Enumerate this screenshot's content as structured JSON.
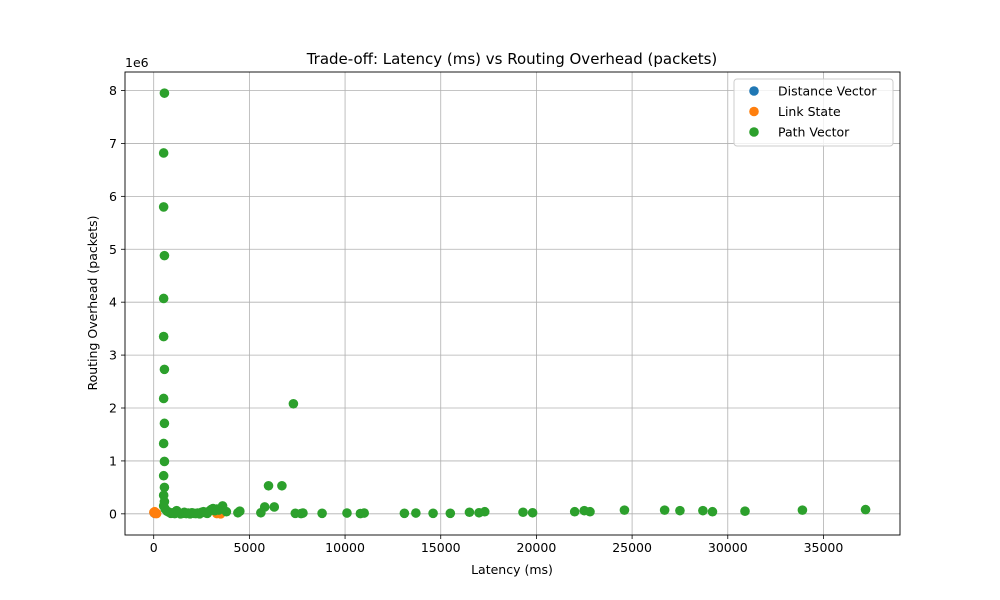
{
  "chart_data": {
    "type": "scatter",
    "title": "Trade-off: Latency (ms) vs Routing Overhead (packets)",
    "xlabel": "Latency (ms)",
    "ylabel": "Routing Overhead (packets)",
    "y_scale_label": "1e6",
    "xlim": [
      -1500,
      39000
    ],
    "ylim": [
      -400000,
      8350000
    ],
    "x_ticks": [
      0,
      5000,
      10000,
      15000,
      20000,
      25000,
      30000,
      35000
    ],
    "x_tick_labels": [
      "0",
      "5000",
      "10000",
      "15000",
      "20000",
      "25000",
      "30000",
      "35000"
    ],
    "y_ticks": [
      0,
      1000000,
      2000000,
      3000000,
      4000000,
      5000000,
      6000000,
      7000000,
      8000000
    ],
    "y_tick_labels": [
      "0",
      "1",
      "2",
      "3",
      "4",
      "5",
      "6",
      "7",
      "8"
    ],
    "grid": true,
    "legend_position": "top-right",
    "series": [
      {
        "name": "Distance Vector",
        "color": "#1f77b4",
        "points": [
          [
            20,
            20000
          ],
          [
            40,
            15000
          ],
          [
            60,
            10000
          ],
          [
            80,
            25000
          ],
          [
            100,
            12000
          ]
        ]
      },
      {
        "name": "Link State",
        "color": "#ff7f0e",
        "points": [
          [
            10,
            30000
          ],
          [
            30,
            20000
          ],
          [
            50,
            40000
          ],
          [
            70,
            10000
          ],
          [
            90,
            25000
          ],
          [
            120,
            15000
          ],
          [
            150,
            5000
          ],
          [
            3300,
            5000
          ],
          [
            3500,
            0
          ]
        ]
      },
      {
        "name": "Path Vector",
        "color": "#2ca02c",
        "points": [
          [
            560,
            7950000
          ],
          [
            520,
            6820000
          ],
          [
            520,
            5800000
          ],
          [
            560,
            4880000
          ],
          [
            520,
            4070000
          ],
          [
            520,
            3350000
          ],
          [
            560,
            2730000
          ],
          [
            520,
            2180000
          ],
          [
            560,
            1710000
          ],
          [
            520,
            1330000
          ],
          [
            560,
            990000
          ],
          [
            520,
            720000
          ],
          [
            560,
            500000
          ],
          [
            520,
            350000
          ],
          [
            560,
            230000
          ],
          [
            520,
            150000
          ],
          [
            600,
            90000
          ],
          [
            700,
            50000
          ],
          [
            800,
            30000
          ],
          [
            900,
            10000
          ],
          [
            1000,
            20000
          ],
          [
            1100,
            5000
          ],
          [
            1200,
            60000
          ],
          [
            1300,
            20000
          ],
          [
            1400,
            0
          ],
          [
            1500,
            10000
          ],
          [
            1600,
            30000
          ],
          [
            1700,
            5000
          ],
          [
            1800,
            15000
          ],
          [
            1900,
            0
          ],
          [
            2000,
            20000
          ],
          [
            2100,
            10000
          ],
          [
            2200,
            5000
          ],
          [
            2300,
            15000
          ],
          [
            2400,
            0
          ],
          [
            2500,
            30000
          ],
          [
            2600,
            40000
          ],
          [
            2700,
            20000
          ],
          [
            2800,
            10000
          ],
          [
            2900,
            50000
          ],
          [
            3000,
            80000
          ],
          [
            3100,
            100000
          ],
          [
            3200,
            60000
          ],
          [
            3300,
            90000
          ],
          [
            3400,
            70000
          ],
          [
            3600,
            150000
          ],
          [
            3800,
            40000
          ],
          [
            4400,
            20000
          ],
          [
            4500,
            50000
          ],
          [
            5600,
            20000
          ],
          [
            5800,
            130000
          ],
          [
            6000,
            530000
          ],
          [
            6300,
            130000
          ],
          [
            6700,
            530000
          ],
          [
            7300,
            2080000
          ],
          [
            7400,
            10000
          ],
          [
            7700,
            5000
          ],
          [
            7800,
            15000
          ],
          [
            8800,
            10000
          ],
          [
            10100,
            15000
          ],
          [
            10800,
            5000
          ],
          [
            11000,
            15000
          ],
          [
            13100,
            10000
          ],
          [
            13700,
            15000
          ],
          [
            14600,
            10000
          ],
          [
            15500,
            10000
          ],
          [
            16500,
            30000
          ],
          [
            17000,
            20000
          ],
          [
            17300,
            40000
          ],
          [
            19300,
            30000
          ],
          [
            19800,
            20000
          ],
          [
            22000,
            40000
          ],
          [
            22500,
            60000
          ],
          [
            22800,
            40000
          ],
          [
            24600,
            70000
          ],
          [
            26700,
            70000
          ],
          [
            27500,
            60000
          ],
          [
            28700,
            60000
          ],
          [
            29200,
            40000
          ],
          [
            30900,
            50000
          ],
          [
            33900,
            70000
          ],
          [
            37200,
            80000
          ]
        ]
      }
    ]
  }
}
